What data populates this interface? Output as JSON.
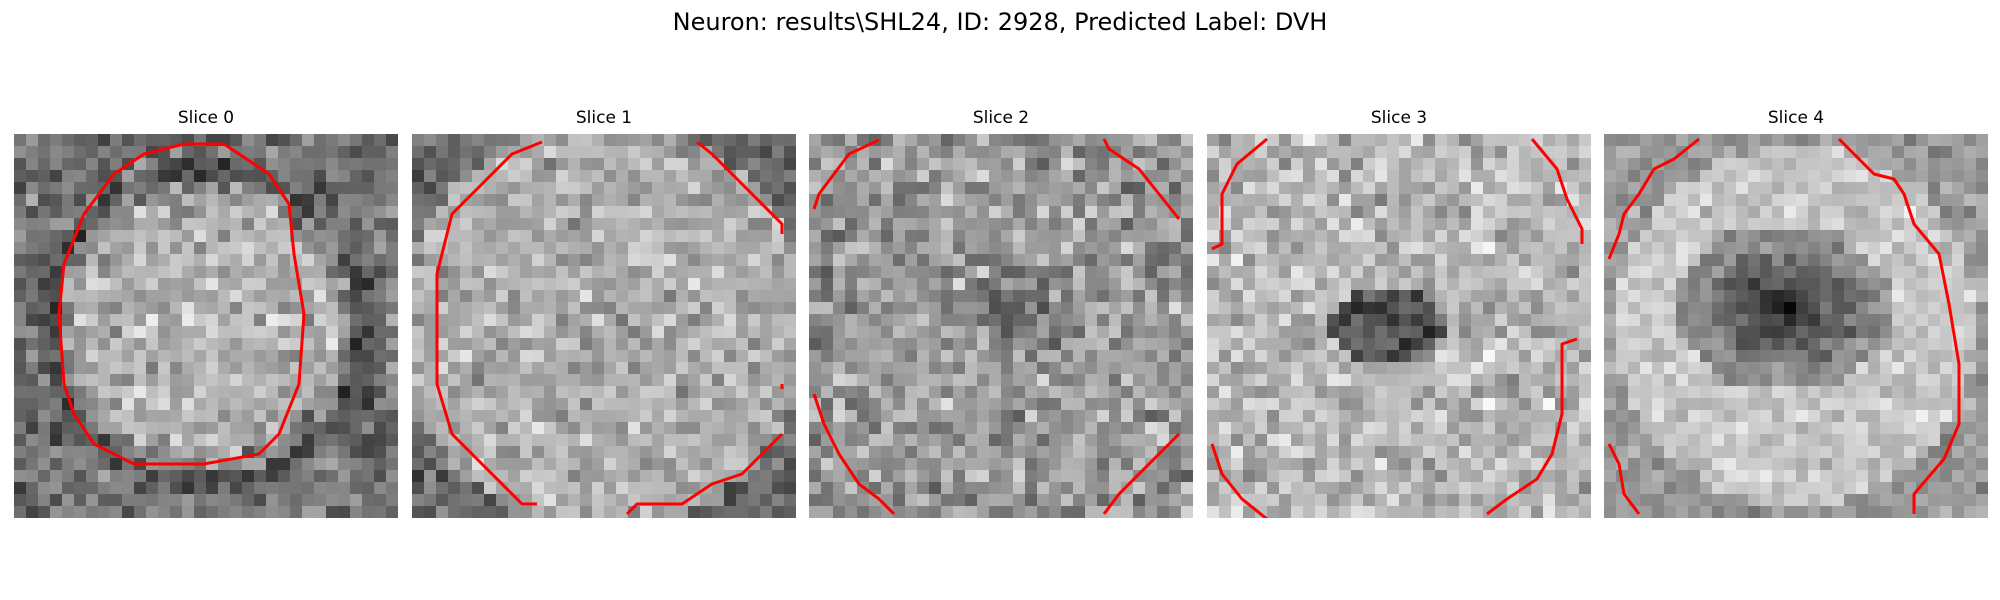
{
  "figure": {
    "title": "Neuron: results\\SHL24, ID: 2928, Predicted Label: DVH"
  },
  "outline_color": "#ff0000",
  "colormap": "gray",
  "panels": [
    {
      "title": "Slice 0"
    },
    {
      "title": "Slice 1"
    },
    {
      "title": "Slice 2"
    },
    {
      "title": "Slice 3"
    },
    {
      "title": "Slice 4"
    }
  ]
}
